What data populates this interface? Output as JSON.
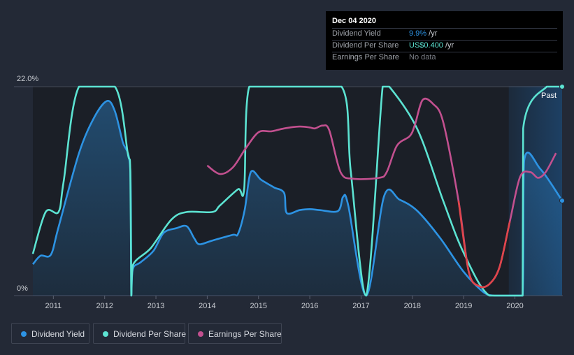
{
  "chart_data": {
    "type": "line",
    "y_axis_labels": {
      "top": "22.0%",
      "bottom": "0%"
    },
    "ylim": [
      0,
      22.0
    ],
    "xlim": [
      2010.6,
      2020.92
    ],
    "x_ticks": [
      "2011",
      "2012",
      "2013",
      "2014",
      "2015",
      "2016",
      "2017",
      "2018",
      "2019",
      "2020"
    ],
    "x_tick_values": [
      2011,
      2012,
      2013,
      2014,
      2015,
      2016,
      2017,
      2018,
      2019,
      2020
    ],
    "past_label": "Past",
    "past_start": 2019.88,
    "series": [
      {
        "name": "Dividend Yield",
        "color": "#2d93e3",
        "unit": "percent",
        "points": [
          [
            2010.6,
            3.3
          ],
          [
            2010.75,
            4.2
          ],
          [
            2010.95,
            4.3
          ],
          [
            2011.1,
            7.2
          ],
          [
            2011.5,
            15.0
          ],
          [
            2011.8,
            18.8
          ],
          [
            2012.05,
            20.5
          ],
          [
            2012.2,
            19.4
          ],
          [
            2012.35,
            16.2
          ],
          [
            2012.5,
            13.2
          ],
          [
            2012.52,
            0
          ],
          [
            2012.55,
            2.8
          ],
          [
            2012.7,
            3.5
          ],
          [
            2012.95,
            4.7
          ],
          [
            2013.15,
            6.6
          ],
          [
            2013.4,
            7.1
          ],
          [
            2013.6,
            7.3
          ],
          [
            2013.75,
            6.0
          ],
          [
            2013.85,
            5.4
          ],
          [
            2014.1,
            5.8
          ],
          [
            2014.5,
            6.4
          ],
          [
            2014.6,
            6.5
          ],
          [
            2014.73,
            9.0
          ],
          [
            2014.85,
            13.0
          ],
          [
            2015.05,
            12.2
          ],
          [
            2015.3,
            11.4
          ],
          [
            2015.5,
            10.8
          ],
          [
            2015.55,
            8.7
          ],
          [
            2015.8,
            9.0
          ],
          [
            2016.0,
            9.1
          ],
          [
            2016.2,
            9.0
          ],
          [
            2016.55,
            8.9
          ],
          [
            2016.65,
            10.4
          ],
          [
            2016.75,
            9.5
          ],
          [
            2017.1,
            0
          ],
          [
            2017.45,
            10.5
          ],
          [
            2017.75,
            10.1
          ],
          [
            2018.1,
            8.9
          ],
          [
            2018.55,
            6.0
          ],
          [
            2019.0,
            2.5
          ],
          [
            2019.4,
            0.3
          ],
          [
            2019.6,
            0
          ],
          [
            2020.15,
            0
          ],
          [
            2020.18,
            14.2
          ],
          [
            2020.5,
            13.3
          ],
          [
            2020.92,
            10.0
          ]
        ]
      },
      {
        "name": "Dividend Per Share",
        "color": "#5ce3d2",
        "unit": "percent",
        "points": [
          [
            2010.6,
            4.4
          ],
          [
            2010.85,
            8.8
          ],
          [
            2011.1,
            8.8
          ],
          [
            2011.2,
            12.0
          ],
          [
            2011.5,
            22.0
          ],
          [
            2012.2,
            22.0
          ],
          [
            2012.45,
            15.0
          ],
          [
            2012.5,
            13.0
          ],
          [
            2012.52,
            0
          ],
          [
            2012.55,
            3.2
          ],
          [
            2012.9,
            5.0
          ],
          [
            2013.3,
            8.0
          ],
          [
            2013.6,
            8.8
          ],
          [
            2014.1,
            8.8
          ],
          [
            2014.25,
            9.5
          ],
          [
            2014.6,
            11.2
          ],
          [
            2014.72,
            11.2
          ],
          [
            2014.82,
            22.0
          ],
          [
            2016.62,
            22.0
          ],
          [
            2016.8,
            13.0
          ],
          [
            2017.1,
            0
          ],
          [
            2017.42,
            22.0
          ],
          [
            2017.55,
            22.0
          ],
          [
            2018.1,
            17.5
          ],
          [
            2018.6,
            10.0
          ],
          [
            2019.0,
            4.5
          ],
          [
            2019.5,
            0
          ],
          [
            2020.15,
            0
          ],
          [
            2020.16,
            17.6
          ],
          [
            2020.62,
            22.0
          ],
          [
            2020.92,
            22.0
          ]
        ]
      },
      {
        "name": "Earnings Per Share",
        "color": "#c2508f",
        "unit": "percent",
        "points": [
          [
            2014.0,
            13.7
          ],
          [
            2014.25,
            12.8
          ],
          [
            2014.5,
            13.5
          ],
          [
            2014.75,
            15.5
          ],
          [
            2015.0,
            17.2
          ],
          [
            2015.25,
            17.3
          ],
          [
            2015.5,
            17.6
          ],
          [
            2015.8,
            17.8
          ],
          [
            2016.0,
            17.7
          ],
          [
            2016.1,
            17.6
          ],
          [
            2016.25,
            17.9
          ],
          [
            2016.38,
            17.4
          ],
          [
            2016.6,
            13.0
          ],
          [
            2016.85,
            12.3
          ],
          [
            2017.35,
            12.4
          ],
          [
            2017.5,
            13.0
          ],
          [
            2017.7,
            15.8
          ],
          [
            2017.95,
            16.8
          ],
          [
            2018.05,
            18.0
          ],
          [
            2018.2,
            20.6
          ],
          [
            2018.4,
            20.2
          ],
          [
            2018.6,
            18.3
          ],
          [
            2018.9,
            10.0
          ],
          [
            2019.1,
            2.5
          ],
          [
            2019.3,
            1.0
          ],
          [
            2019.5,
            1.2
          ],
          [
            2019.7,
            3.0
          ],
          [
            2019.9,
            7.8
          ],
          [
            2020.1,
            12.5
          ],
          [
            2020.3,
            13.0
          ],
          [
            2020.45,
            12.4
          ],
          [
            2020.6,
            13.0
          ],
          [
            2020.8,
            15.0
          ]
        ]
      }
    ]
  },
  "tooltip": {
    "date": "Dec 04 2020",
    "rows": [
      {
        "label": "Dividend Yield",
        "value": "9.9%",
        "suffix": " /yr",
        "color": "#2d93e3"
      },
      {
        "label": "Dividend Per Share",
        "value": "US$0.400",
        "suffix": " /yr",
        "color": "#5ce3d2"
      },
      {
        "label": "Earnings Per Share",
        "value": "No data",
        "suffix": "",
        "color": "#7d8189"
      }
    ]
  },
  "legend": [
    {
      "label": "Dividend Yield",
      "color": "#2d93e3"
    },
    {
      "label": "Dividend Per Share",
      "color": "#5ce3d2"
    },
    {
      "label": "Earnings Per Share",
      "color": "#c2508f"
    }
  ]
}
